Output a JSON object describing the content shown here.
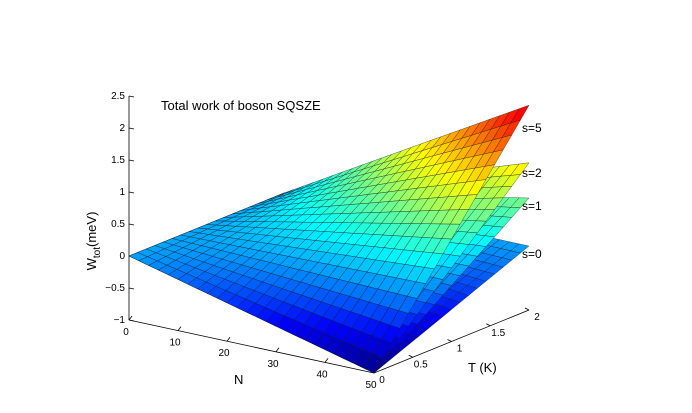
{
  "chart_data": {
    "type": "surface",
    "title": "Total work of boson SQSZE",
    "zlabel_main": "W",
    "zlabel_sub": "tot",
    "zlabel_unit": "(meV)",
    "xlabel": "N",
    "ylabel": "T (K)",
    "xlim": [
      0,
      50
    ],
    "ylim": [
      0,
      2
    ],
    "zlim": [
      -1,
      2.5
    ],
    "x_ticks": [
      0,
      10,
      20,
      30,
      40,
      50
    ],
    "y_ticks": [
      0,
      0.5,
      1,
      1.5,
      2
    ],
    "z_ticks": [
      -1,
      -0.5,
      0,
      0.5,
      1,
      1.5,
      2,
      2.5
    ],
    "x_tick_labels": [
      "0",
      "10",
      "20",
      "30",
      "40",
      "50"
    ],
    "y_tick_labels": [
      "0",
      "0.5",
      "1",
      "1.5",
      "2"
    ],
    "z_tick_labels": [
      "−1",
      "−0.5",
      "0",
      "0.5",
      "1",
      "1.5",
      "2",
      "2.5"
    ],
    "colormap": "jet",
    "series": [
      {
        "name": "s=0",
        "corners": {
          "N0_T0": 0,
          "N0_T2": 0,
          "N50_T0": -1.0,
          "N50_T2": 0
        }
      },
      {
        "name": "s=1",
        "corners": {
          "N0_T0": 0,
          "N0_T2": 0,
          "N50_T0": -1.0,
          "N50_T2": 0.75
        }
      },
      {
        "name": "s=2",
        "corners": {
          "N0_T0": 0,
          "N0_T2": 0,
          "N50_T0": -1.0,
          "N50_T2": 1.3
        }
      },
      {
        "name": "s=5",
        "corners": {
          "N0_T0": 0,
          "N0_T2": 0,
          "N50_T0": -1.0,
          "N50_T2": 2.2
        }
      }
    ]
  }
}
